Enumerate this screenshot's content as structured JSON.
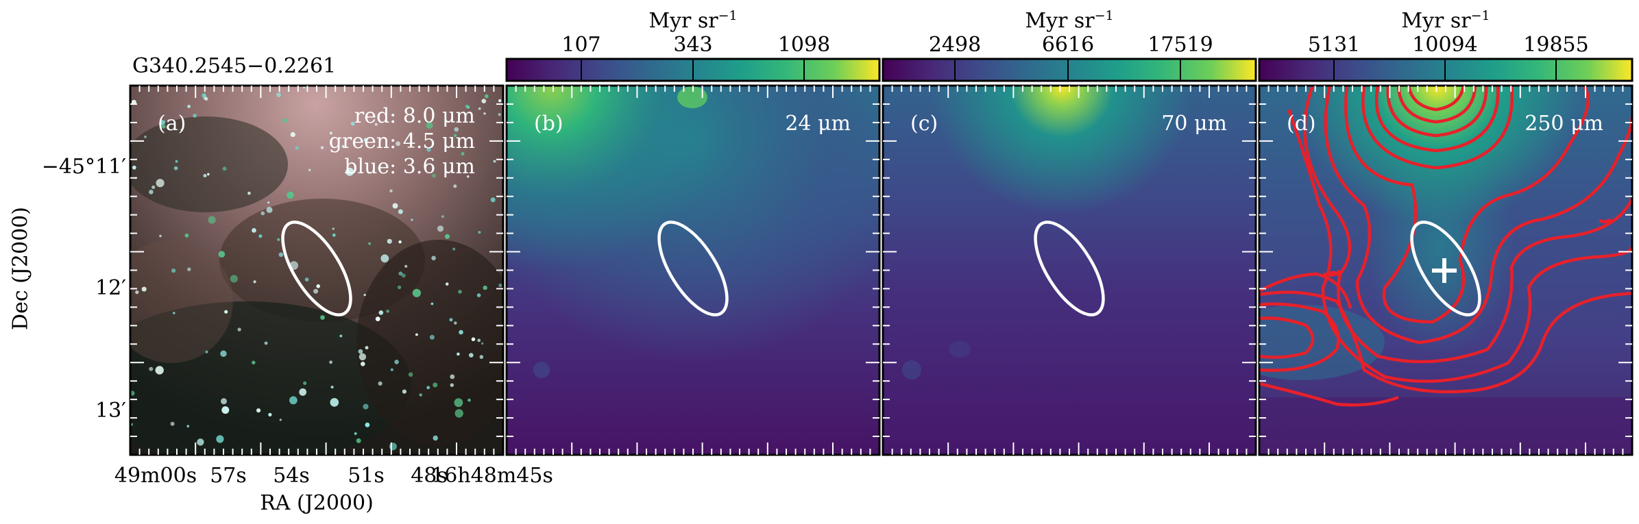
{
  "source_name": "G340.2545−0.2261",
  "y_axis_title": "Dec (J2000)",
  "x_axis_title": "RA (J2000)",
  "y_ticks": [
    "−45°11′",
    "12′",
    "13′"
  ],
  "x_ticks": [
    "49m00s",
    "57s",
    "54s",
    "51s",
    "48s",
    "16h48m45s"
  ],
  "panels": [
    {
      "label": "(a)",
      "legend": [
        "red: 8.0 μm",
        "green: 4.5 μm",
        "blue: 3.6 μm"
      ],
      "icon": "rgb-composite-image"
    },
    {
      "label": "(b)",
      "wavelength": "24 μm",
      "colorbar_unit": "Myr sr",
      "colorbar_exp": "−1",
      "colorbar_ticks": [
        "107",
        "343",
        "1098"
      ],
      "icon": "24um-map"
    },
    {
      "label": "(c)",
      "wavelength": "70 μm",
      "colorbar_unit": "Myr sr",
      "colorbar_exp": "−1",
      "colorbar_ticks": [
        "2498",
        "6616",
        "17519"
      ],
      "icon": "70um-map"
    },
    {
      "label": "(d)",
      "wavelength": "250 μm",
      "colorbar_unit": "Myr sr",
      "colorbar_exp": "−1",
      "colorbar_ticks": [
        "5131",
        "10094",
        "19855"
      ],
      "icon": "250um-map-contours"
    }
  ],
  "colors": {
    "ellipse": "#ffffff",
    "contour": "#e8202a",
    "marker": "#ffffff"
  }
}
